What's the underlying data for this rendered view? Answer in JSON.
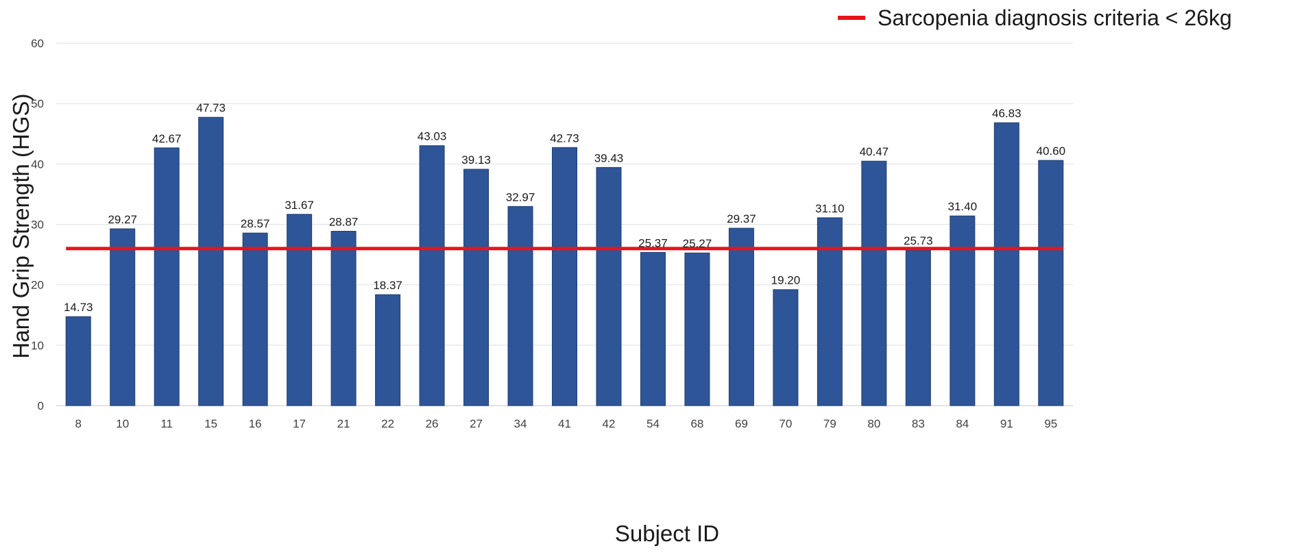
{
  "chart_data": {
    "type": "bar",
    "xlabel": "Subject ID",
    "ylabel": "Hand Grip Strength (HGS)",
    "categories": [
      "8",
      "10",
      "11",
      "15",
      "16",
      "17",
      "21",
      "22",
      "26",
      "27",
      "34",
      "41",
      "42",
      "54",
      "68",
      "69",
      "70",
      "79",
      "80",
      "83",
      "84",
      "91",
      "95"
    ],
    "values": [
      14.73,
      29.27,
      42.67,
      47.73,
      28.57,
      31.67,
      28.87,
      18.37,
      43.03,
      39.13,
      32.97,
      42.73,
      39.43,
      25.37,
      25.27,
      29.37,
      19.2,
      31.1,
      40.47,
      25.73,
      31.4,
      46.83,
      40.6
    ],
    "value_labels": [
      "14.73",
      "29.27",
      "42.67",
      "47.73",
      "28.57",
      "31.67",
      "28.87",
      "18.37",
      "43.03",
      "39.13",
      "32.97",
      "42.73",
      "39.43",
      "25.37",
      "25.27",
      "29.37",
      "19.20",
      "31.10",
      "40.47",
      "25.73",
      "31.40",
      "46.83",
      "40.60"
    ],
    "ylim": [
      0,
      60
    ],
    "yticks": [
      0,
      10,
      20,
      30,
      40,
      50,
      60
    ],
    "grid": true,
    "bar_color": "#2e5597",
    "reference_line": {
      "value": 26,
      "color": "#e8141b",
      "label": "Sarcopenia diagnosis criteria < 26kg"
    },
    "legend_position": "top-right"
  }
}
